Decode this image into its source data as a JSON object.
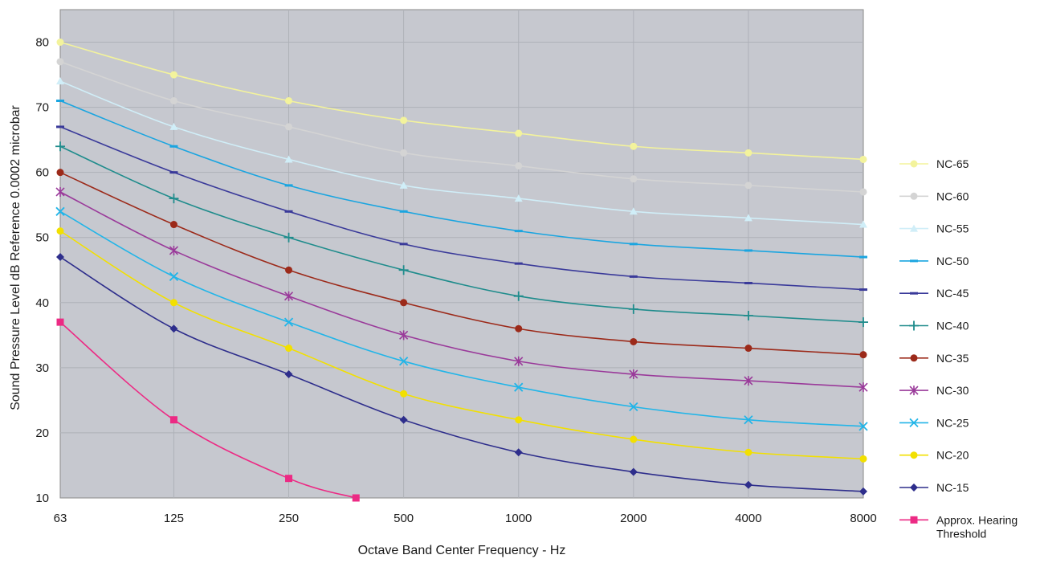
{
  "chart_data": {
    "type": "line",
    "xlabel": "Octave Band Center Frequency - Hz",
    "ylabel": "Sound Pressure Level dB Reference 0.0002 microbar",
    "x_scale": "log2",
    "x": [
      63,
      125,
      250,
      500,
      1000,
      2000,
      4000,
      8000
    ],
    "x_tick_labels": [
      "63",
      "125",
      "250",
      "500",
      "1000",
      "2000",
      "4000",
      "8000"
    ],
    "ylim": [
      10,
      85
    ],
    "y_ticks": [
      10,
      20,
      30,
      40,
      50,
      60,
      70,
      80
    ],
    "grid": true,
    "legend_position": "right",
    "series": [
      {
        "name": "NC-65",
        "color": "#f3f39c",
        "marker": "circle",
        "values": [
          80,
          75,
          71,
          68,
          66,
          64,
          63,
          62
        ]
      },
      {
        "name": "NC-60",
        "color": "#d4d4d4",
        "marker": "circle",
        "values": [
          77,
          71,
          67,
          63,
          61,
          59,
          58,
          57
        ]
      },
      {
        "name": "NC-55",
        "color": "#d0eef8",
        "marker": "triangle",
        "values": [
          74,
          67,
          62,
          58,
          56,
          54,
          53,
          52
        ]
      },
      {
        "name": "NC-50",
        "color": "#1aa5e0",
        "marker": "dash",
        "values": [
          71,
          64,
          58,
          54,
          51,
          49,
          48,
          47
        ]
      },
      {
        "name": "NC-45",
        "color": "#3a3a9a",
        "marker": "dash",
        "values": [
          67,
          60,
          54,
          49,
          46,
          44,
          43,
          42
        ]
      },
      {
        "name": "NC-40",
        "color": "#1f8c8c",
        "marker": "plus",
        "values": [
          64,
          56,
          50,
          45,
          41,
          39,
          38,
          37
        ]
      },
      {
        "name": "NC-35",
        "color": "#9c2a1a",
        "marker": "circle",
        "values": [
          60,
          52,
          45,
          40,
          36,
          34,
          33,
          32
        ]
      },
      {
        "name": "NC-30",
        "color": "#9a3a9a",
        "marker": "star",
        "values": [
          57,
          48,
          41,
          35,
          31,
          29,
          28,
          27
        ]
      },
      {
        "name": "NC-25",
        "color": "#22b5e8",
        "marker": "x",
        "values": [
          54,
          44,
          37,
          31,
          27,
          24,
          22,
          21
        ]
      },
      {
        "name": "NC-20",
        "color": "#f2e000",
        "marker": "circle",
        "values": [
          51,
          40,
          33,
          26,
          22,
          19,
          17,
          16
        ]
      },
      {
        "name": "NC-15",
        "color": "#2e2e8c",
        "marker": "diamond",
        "values": [
          47,
          36,
          29,
          22,
          17,
          14,
          12,
          11
        ]
      },
      {
        "name": "Approx. Hearing Threshold",
        "color": "#ec2a84",
        "marker": "square",
        "x": [
          63,
          125,
          250,
          375
        ],
        "values": [
          37,
          22,
          13,
          10
        ]
      }
    ]
  }
}
